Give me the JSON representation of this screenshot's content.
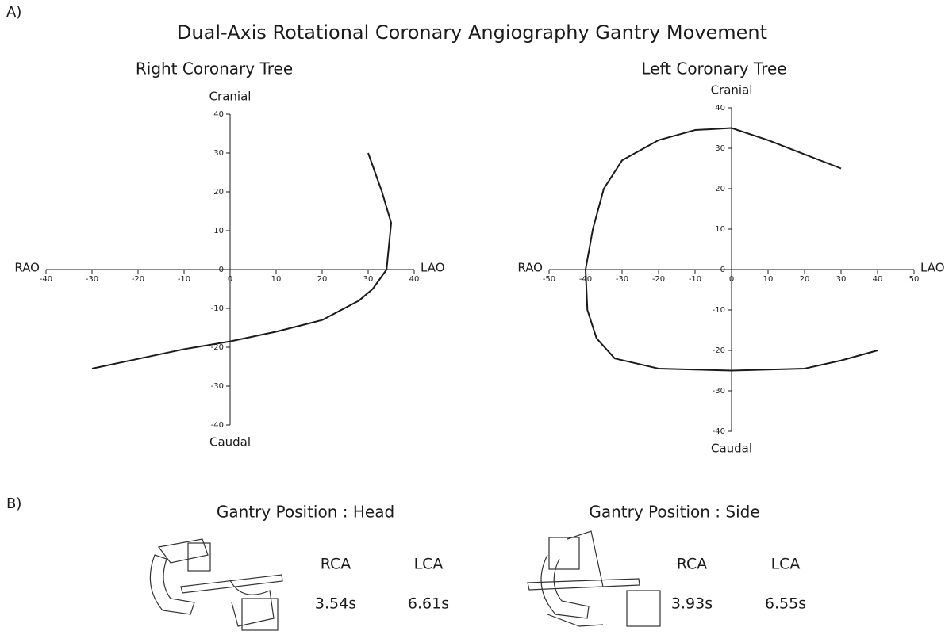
{
  "panel_a_label": "A)",
  "title": "Dual-Axis Rotational Coronary Angiography Gantry Movement",
  "chart_data": [
    {
      "type": "line",
      "title": "Right Coronary Tree",
      "x_min_label": "RAO",
      "x_max_label": "LAO",
      "y_max_label": "Cranial",
      "y_min_label": "Caudal",
      "x": [
        30,
        33,
        35,
        34,
        31,
        28,
        20,
        10,
        0,
        -10,
        -20,
        -30
      ],
      "values": [
        30,
        20,
        12,
        0,
        -5,
        -8,
        -13,
        -16,
        -18.5,
        -20.5,
        -23,
        -25.5
      ],
      "color": "#1a1a1a",
      "xlim": [
        -40,
        40
      ],
      "ylim": [
        -40,
        40
      ],
      "xticks": [
        -40,
        -30,
        -20,
        -10,
        0,
        10,
        20,
        30,
        40
      ],
      "yticks": [
        -40,
        -30,
        -20,
        -10,
        0,
        10,
        20,
        30,
        40
      ]
    },
    {
      "type": "line",
      "title": "Left Coronary Tree",
      "x_min_label": "RAO",
      "x_max_label": "LAO",
      "y_max_label": "Cranial",
      "y_min_label": "Caudal",
      "x": [
        30,
        20,
        10,
        0,
        -10,
        -20,
        -30,
        -35,
        -38,
        -40,
        -39.5,
        -37,
        -32,
        -20,
        0,
        20,
        30,
        40
      ],
      "values": [
        25,
        28.5,
        32,
        35,
        34.5,
        32,
        27,
        20,
        10,
        0,
        -10,
        -17,
        -22,
        -24.5,
        -25,
        -24.5,
        -22.5,
        -20
      ],
      "color": "#1a1a1a",
      "xlim": [
        -50,
        50
      ],
      "ylim": [
        -40,
        40
      ],
      "xticks": [
        -50,
        -40,
        -30,
        -20,
        -10,
        0,
        10,
        20,
        30,
        40,
        50
      ],
      "yticks": [
        -40,
        -30,
        -20,
        -10,
        0,
        10,
        20,
        30,
        40
      ]
    }
  ],
  "panel_b": {
    "label": "B)",
    "positions": [
      {
        "title": "Gantry Position : Head",
        "headers": [
          "RCA",
          "LCA"
        ],
        "times": [
          "3.54s",
          "6.61s"
        ]
      },
      {
        "title": "Gantry Position : Side",
        "headers": [
          "RCA",
          "LCA"
        ],
        "times": [
          "3.93s",
          "6.55s"
        ]
      }
    ]
  }
}
